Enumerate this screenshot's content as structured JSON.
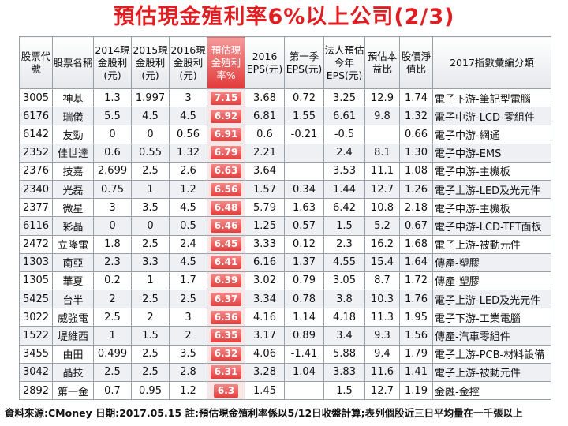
{
  "title": "預估現金殖利率6%以上公司(2/3)",
  "headers": [
    "股票代號",
    "股票名稱",
    "2014現金股利(元)",
    "2015現金股利(元)",
    "2016現金股利(元)",
    "預估現金殖利率%",
    "2016 EPS(元)",
    "第一季EPS(元)",
    "法人預估今年EPS(元)",
    "預估本益比",
    "股價淨值比",
    "2017指數彙編分類"
  ],
  "rows": [
    [
      "3005",
      "神基",
      "1.3",
      "1.997",
      "3",
      "7.15",
      "3.68",
      "0.72",
      "3.25",
      "12.9",
      "1.74",
      "電子下游-筆記型電腦"
    ],
    [
      "6176",
      "瑞儀",
      "5.5",
      "4.5",
      "4.5",
      "6.92",
      "6.81",
      "1.55",
      "6.61",
      "9.8",
      "1.32",
      "電子中游-LCD-零組件"
    ],
    [
      "6142",
      "友勁",
      "0",
      "0",
      "0.56",
      "6.91",
      "0.6",
      "-0.21",
      "-0.5",
      "",
      "0.66",
      "電子中游-網通"
    ],
    [
      "2352",
      "佳世達",
      "0.6",
      "0.55",
      "1.32",
      "6.79",
      "2.21",
      "",
      "2.4",
      "8.1",
      "1.30",
      "電子中游-EMS"
    ],
    [
      "2376",
      "技嘉",
      "2.699",
      "2.5",
      "2.6",
      "6.63",
      "3.64",
      "",
      "3.53",
      "11.1",
      "1.08",
      "電子中游-主機板"
    ],
    [
      "2340",
      "光磊",
      "0.75",
      "1",
      "1.2",
      "6.56",
      "1.57",
      "0.34",
      "1.44",
      "12.7",
      "1.26",
      "電子上游-LED及光元件"
    ],
    [
      "2377",
      "微星",
      "3",
      "3.5",
      "4.5",
      "6.48",
      "5.79",
      "1.63",
      "6.42",
      "10.8",
      "2.18",
      "電子中游-主機板"
    ],
    [
      "6116",
      "彩晶",
      "0",
      "0",
      "0.5",
      "6.46",
      "1.25",
      "0.57",
      "1.5",
      "5.2",
      "0.67",
      "電子中游-LCD-TFT面板"
    ],
    [
      "2472",
      "立隆電",
      "1.8",
      "2.5",
      "2.4",
      "6.45",
      "3.33",
      "0.12",
      "2.3",
      "16.2",
      "1.68",
      "電子上游-被動元件"
    ],
    [
      "1303",
      "南亞",
      "2.3",
      "3.3",
      "4.5",
      "6.41",
      "6.16",
      "1.37",
      "4.55",
      "15.4",
      "1.64",
      "傳產-塑膠"
    ],
    [
      "1305",
      "華夏",
      "0.2",
      "1",
      "1.7",
      "6.39",
      "3.02",
      "0.79",
      "3.05",
      "8.7",
      "1.72",
      "傳產-塑膠"
    ],
    [
      "5425",
      "台半",
      "2",
      "2.5",
      "2.5",
      "6.37",
      "3.34",
      "0.78",
      "3.8",
      "10.3",
      "1.76",
      "電子上游-LED及光元件"
    ],
    [
      "3022",
      "威強電",
      "2.5",
      "2",
      "3",
      "6.36",
      "4.16",
      "1.14",
      "4.18",
      "11.3",
      "1.95",
      "電子下游-工業電腦"
    ],
    [
      "1522",
      "堤維西",
      "1",
      "1.5",
      "2",
      "6.35",
      "3.17",
      "0.89",
      "3.4",
      "9.3",
      "1.56",
      "傳產-汽車零組件"
    ],
    [
      "3455",
      "由田",
      "0.499",
      "2.5",
      "3.5",
      "6.32",
      "4.06",
      "-1.41",
      "5.88",
      "9.4",
      "1.79",
      "電子上游-PCB-材料設備"
    ],
    [
      "3042",
      "晶技",
      "2.5",
      "2.5",
      "2.8",
      "6.31",
      "3.28",
      "1.04",
      "3.83",
      "11.6",
      "1.41",
      "電子上游-被動元件"
    ],
    [
      "2892",
      "第一金",
      "0.7",
      "0.95",
      "1.2",
      "6.3",
      "1.45",
      "",
      "1.5",
      "12.7",
      "1.19",
      "金融-金控"
    ]
  ],
  "footer": "資料來源:CMoney 日期:2017.05.15  註:預估現金殖利率係以5/12日收盤計算;表列個股近三日平均量在一千張以上"
}
